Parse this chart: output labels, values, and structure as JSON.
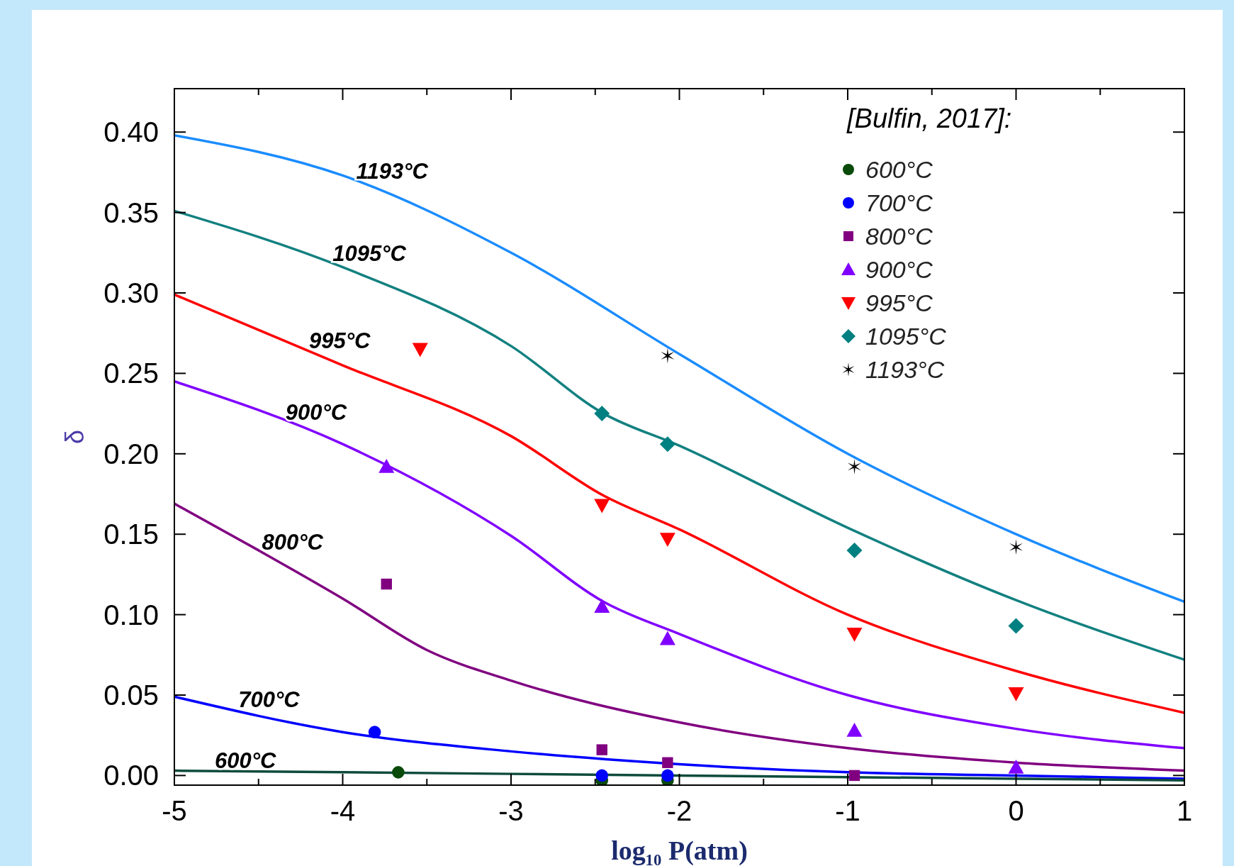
{
  "chart_data": {
    "type": "line",
    "xlabel": "log₁₀ P(atm)",
    "ylabel": "δ",
    "legend_title": "[Bulfin, 2017]:",
    "legend": "top right",
    "xlim": [
      -5,
      1
    ],
    "ylim": [
      -0.006,
      0.427
    ],
    "xticks": [
      -5,
      {
        "value": -4.5,
        "label": null
      },
      -4,
      {
        "value": -3.5,
        "label": null
      },
      -3,
      {
        "value": -2.5,
        "label": null
      },
      -2,
      {
        "value": -1.5,
        "label": null
      },
      -1,
      {
        "value": -0.5,
        "label": null
      },
      0,
      {
        "value": 0.5,
        "label": null
      },
      1
    ],
    "yticks": [
      {
        "value": 0,
        "label": "0.00"
      },
      {
        "value": 0.05,
        "label": "0.05"
      },
      {
        "value": 0.1,
        "label": "0.10"
      },
      {
        "value": 0.15,
        "label": "0.15"
      },
      {
        "value": 0.2,
        "label": "0.20"
      },
      {
        "value": 0.25,
        "label": "0.25"
      },
      {
        "value": 0.3,
        "label": "0.30"
      },
      {
        "value": 0.35,
        "label": "0.35"
      },
      {
        "value": 0.4,
        "label": "0.40"
      }
    ],
    "series": [
      {
        "color": "#1a8cff",
        "x": [
          -5,
          -4,
          -3,
          -2,
          -1,
          0,
          1
        ],
        "values": [
          0.398,
          0.373,
          0.325,
          0.262,
          0.2,
          0.15,
          0.108
        ]
      },
      {
        "color": "#138080",
        "x": [
          -5,
          -4,
          -3,
          -2.45,
          -2,
          -1,
          0,
          1
        ],
        "values": [
          0.351,
          0.316,
          0.267,
          0.225,
          0.205,
          0.154,
          0.109,
          0.072
        ]
      },
      {
        "color": "#ff0000",
        "x": [
          -5,
          -4,
          -3,
          -2.45,
          -2,
          -1,
          0,
          1
        ],
        "values": [
          0.299,
          0.255,
          0.211,
          0.174,
          0.153,
          0.1,
          0.065,
          0.039
        ]
      },
      {
        "color": "#8000ff",
        "x": [
          -5,
          -4,
          -3,
          -2.45,
          -2,
          -1,
          0,
          1
        ],
        "values": [
          0.245,
          0.206,
          0.149,
          0.108,
          0.088,
          0.05,
          0.029,
          0.017
        ]
      },
      {
        "color": "#800080",
        "x": [
          -5,
          -4.5,
          -4,
          -3.5,
          -3,
          -2,
          -1,
          0,
          1
        ],
        "values": [
          0.169,
          0.14,
          0.11,
          0.078,
          0.059,
          0.033,
          0.017,
          0.008,
          0.003
        ]
      },
      {
        "color": "#0000ff",
        "x": [
          -5,
          -4,
          -3,
          -2,
          -1,
          0,
          1
        ],
        "values": [
          0.049,
          0.027,
          0.015,
          0.007,
          0.002,
          0,
          -0.002
        ]
      },
      {
        "color": "#0e4b3c",
        "x": [
          -5,
          -3,
          -1,
          1
        ],
        "values": [
          0.003,
          0.001,
          -0.001,
          -0.003
        ]
      },
      {
        "type": "scatter",
        "name": "600°C",
        "color": "#0a4a0a",
        "marker": "circle",
        "x": [
          -3.67,
          -2.46,
          -2.07
        ],
        "values": [
          0.002,
          -0.003,
          -0.003
        ]
      },
      {
        "type": "scatter",
        "name": "700°C",
        "color": "#0000ff",
        "marker": "circle",
        "x": [
          -3.81,
          -2.46,
          -2.07
        ],
        "values": [
          0.027,
          0,
          0
        ]
      },
      {
        "type": "scatter",
        "name": "800°C",
        "color": "#800080",
        "marker": "square",
        "x": [
          -3.74,
          -2.46,
          -2.07,
          -0.96
        ],
        "values": [
          0.119,
          0.016,
          0.008,
          0
        ]
      },
      {
        "type": "scatter",
        "name": "900°C",
        "color": "#8000ff",
        "marker": "triangle",
        "x": [
          -3.74,
          -2.46,
          -2.07,
          -0.96,
          0
        ],
        "values": [
          0.192,
          0.105,
          0.085,
          0.028,
          0.005
        ]
      },
      {
        "type": "scatter",
        "name": "995°C",
        "color": "#ff0000",
        "marker": "triangle-down",
        "x": [
          -3.54,
          -2.46,
          -2.07,
          -0.96,
          0
        ],
        "values": [
          0.265,
          0.168,
          0.147,
          0.088,
          0.051
        ]
      },
      {
        "type": "scatter",
        "name": "1095°C",
        "color": "#008080",
        "marker": "diamond",
        "x": [
          -2.46,
          -2.07,
          -0.96,
          0
        ],
        "values": [
          0.225,
          0.206,
          0.14,
          0.093
        ]
      },
      {
        "type": "scatter",
        "name": "1193°C",
        "color": "#000000",
        "marker": "cross",
        "x": [
          -2.07,
          -0.96,
          0
        ],
        "values": [
          0.261,
          0.192,
          0.142
        ]
      }
    ],
    "annotations": [
      "1193°C",
      "1095°C",
      "995°C",
      "900°C",
      "800°C",
      "700°C",
      "600°C"
    ]
  }
}
